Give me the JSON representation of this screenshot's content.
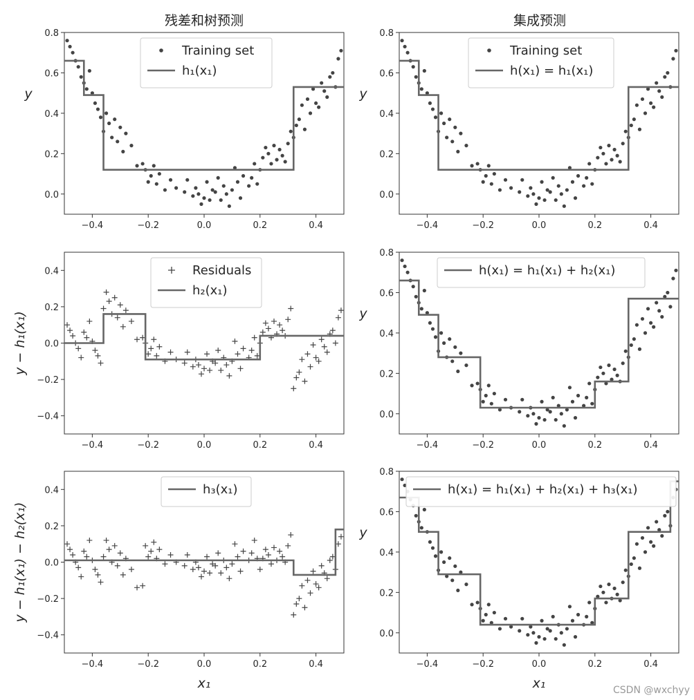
{
  "figure": {
    "col_titles": [
      "残差和树预测",
      "集成预测"
    ],
    "watermark": "CSDN @wxchyy"
  },
  "colors": {
    "points": "#444444",
    "line": "#666666",
    "axes": "#333333",
    "legend_border": "#cccccc"
  },
  "points": {
    "x": [
      -0.49,
      -0.48,
      -0.47,
      -0.46,
      -0.45,
      -0.44,
      -0.43,
      -0.42,
      -0.41,
      -0.4,
      -0.39,
      -0.38,
      -0.37,
      -0.36,
      -0.35,
      -0.34,
      -0.33,
      -0.32,
      -0.31,
      -0.3,
      -0.29,
      -0.28,
      -0.26,
      -0.24,
      -0.22,
      -0.21,
      -0.2,
      -0.19,
      -0.18,
      -0.17,
      -0.16,
      -0.14,
      -0.12,
      -0.1,
      -0.07,
      -0.06,
      -0.04,
      -0.03,
      -0.02,
      -0.01,
      0.0,
      0.01,
      0.02,
      0.03,
      0.04,
      0.05,
      0.06,
      0.07,
      0.08,
      0.09,
      0.1,
      0.11,
      0.12,
      0.13,
      0.14,
      0.16,
      0.17,
      0.18,
      0.19,
      0.2,
      0.21,
      0.22,
      0.23,
      0.24,
      0.25,
      0.26,
      0.27,
      0.28,
      0.29,
      0.3,
      0.31,
      0.32,
      0.33,
      0.34,
      0.35,
      0.36,
      0.37,
      0.38,
      0.39,
      0.4,
      0.41,
      0.42,
      0.43,
      0.44,
      0.45,
      0.46,
      0.47,
      0.48,
      0.49
    ],
    "y": [
      0.76,
      0.73,
      0.7,
      0.66,
      0.63,
      0.58,
      0.55,
      0.52,
      0.61,
      0.5,
      0.45,
      0.42,
      0.38,
      0.31,
      0.4,
      0.35,
      0.28,
      0.37,
      0.26,
      0.33,
      0.21,
      0.3,
      0.24,
      0.14,
      0.15,
      0.12,
      0.06,
      0.09,
      0.14,
      0.05,
      0.1,
      0.02,
      0.07,
      0.03,
      0.01,
      0.07,
      -0.01,
      0.03,
      0.0,
      -0.05,
      -0.02,
      0.06,
      -0.03,
      0.02,
      0.01,
      0.08,
      -0.03,
      0.04,
      0.0,
      -0.06,
      0.02,
      0.13,
      0.06,
      -0.02,
      0.09,
      0.04,
      0.08,
      0.15,
      0.05,
      0.12,
      0.18,
      0.23,
      0.2,
      0.15,
      0.24,
      0.17,
      0.22,
      0.19,
      0.16,
      0.25,
      0.31,
      0.28,
      0.34,
      0.37,
      0.44,
      0.32,
      0.47,
      0.4,
      0.52,
      0.45,
      0.43,
      0.55,
      0.51,
      0.48,
      0.58,
      0.6,
      0.53,
      0.67,
      0.71
    ]
  },
  "ticks": {
    "x": [
      -0.4,
      -0.2,
      0.0,
      0.2,
      0.4
    ],
    "x_labels": [
      "−0.4",
      "−0.2",
      "0.0",
      "0.2",
      "0.4"
    ],
    "y_top": [
      0.0,
      0.2,
      0.4,
      0.6,
      0.8
    ],
    "y_top_labels": [
      "0.0",
      "0.2",
      "0.4",
      "0.6",
      "0.8"
    ],
    "y_res": [
      -0.4,
      -0.2,
      0.0,
      0.2,
      0.4
    ],
    "y_res_labels": [
      "−0.4",
      "−0.2",
      "0.0",
      "0.2",
      "0.4"
    ]
  },
  "chart_data": [
    {
      "type": "scatter",
      "panel": "left-top",
      "xlim": [
        -0.5,
        0.5
      ],
      "ylim": [
        -0.1,
        0.8
      ],
      "ylabel": "y",
      "legend": [
        "Training set",
        "h₁(x₁)"
      ],
      "series": [
        {
          "name": "Training set",
          "kind": "points",
          "ref": "points"
        },
        {
          "name": "h₁(x₁)",
          "kind": "step",
          "breaks": [
            -0.5,
            -0.43,
            -0.36,
            0.32,
            0.5
          ],
          "levels": [
            0.66,
            0.49,
            0.12,
            0.53
          ]
        }
      ]
    },
    {
      "type": "scatter",
      "panel": "right-top",
      "xlim": [
        -0.5,
        0.5
      ],
      "ylim": [
        -0.1,
        0.8
      ],
      "ylabel": "y",
      "legend": [
        "Training set",
        "h(x₁) = h₁(x₁)"
      ],
      "series": [
        {
          "name": "Training set",
          "kind": "points",
          "ref": "points"
        },
        {
          "name": "h(x₁) = h₁(x₁)",
          "kind": "step",
          "breaks": [
            -0.5,
            -0.43,
            -0.36,
            0.32,
            0.5
          ],
          "levels": [
            0.66,
            0.49,
            0.12,
            0.53
          ]
        }
      ]
    },
    {
      "type": "scatter",
      "panel": "left-middle",
      "xlim": [
        -0.5,
        0.5
      ],
      "ylim": [
        -0.5,
        0.5
      ],
      "ylabel": "y − h₁(x₁)",
      "legend": [
        "Residuals",
        "h₂(x₁)"
      ],
      "series": [
        {
          "name": "Residuals",
          "kind": "plus",
          "ref": "residual1"
        },
        {
          "name": "h₂(x₁)",
          "kind": "step",
          "breaks": [
            -0.5,
            -0.36,
            -0.21,
            0.2,
            0.5
          ],
          "levels": [
            0.0,
            0.16,
            -0.09,
            0.04
          ]
        }
      ]
    },
    {
      "type": "scatter",
      "panel": "right-middle",
      "xlim": [
        -0.5,
        0.5
      ],
      "ylim": [
        -0.1,
        0.8
      ],
      "ylabel": "y",
      "legend": [
        "h(x₁) = h₁(x₁) + h₂(x₁)"
      ],
      "series": [
        {
          "name": "points",
          "kind": "points",
          "ref": "points"
        },
        {
          "name": "h(x₁) = h₁(x₁) + h₂(x₁)",
          "kind": "step",
          "breaks": [
            -0.5,
            -0.43,
            -0.36,
            -0.21,
            0.2,
            0.32,
            0.5
          ],
          "levels": [
            0.66,
            0.49,
            0.28,
            0.03,
            0.16,
            0.57
          ]
        }
      ]
    },
    {
      "type": "scatter",
      "panel": "left-bottom",
      "xlim": [
        -0.5,
        0.5
      ],
      "ylim": [
        -0.5,
        0.5
      ],
      "xlabel": "x₁",
      "ylabel": "y − h₁(x₁) − h₂(x₁)",
      "legend": [
        "h₃(x₁)"
      ],
      "series": [
        {
          "name": "residuals",
          "kind": "plus",
          "ref": "residual2"
        },
        {
          "name": "h₃(x₁)",
          "kind": "step",
          "breaks": [
            -0.5,
            0.32,
            0.47,
            0.5
          ],
          "levels": [
            0.01,
            -0.07,
            0.18
          ]
        }
      ]
    },
    {
      "type": "scatter",
      "panel": "right-bottom",
      "xlim": [
        -0.5,
        0.5
      ],
      "ylim": [
        -0.1,
        0.8
      ],
      "xlabel": "x₁",
      "ylabel": "y",
      "legend": [
        "h(x₁) = h₁(x₁) + h₂(x₁) + h₃(x₁)"
      ],
      "series": [
        {
          "name": "points",
          "kind": "points",
          "ref": "points"
        },
        {
          "name": "h(x₁) = h₁(x₁) + h₂(x₁) + h₃(x₁)",
          "kind": "step",
          "breaks": [
            -0.5,
            -0.43,
            -0.36,
            -0.21,
            0.2,
            0.32,
            0.47,
            0.5
          ],
          "levels": [
            0.67,
            0.5,
            0.29,
            0.04,
            0.17,
            0.5,
            0.75
          ]
        }
      ]
    }
  ]
}
